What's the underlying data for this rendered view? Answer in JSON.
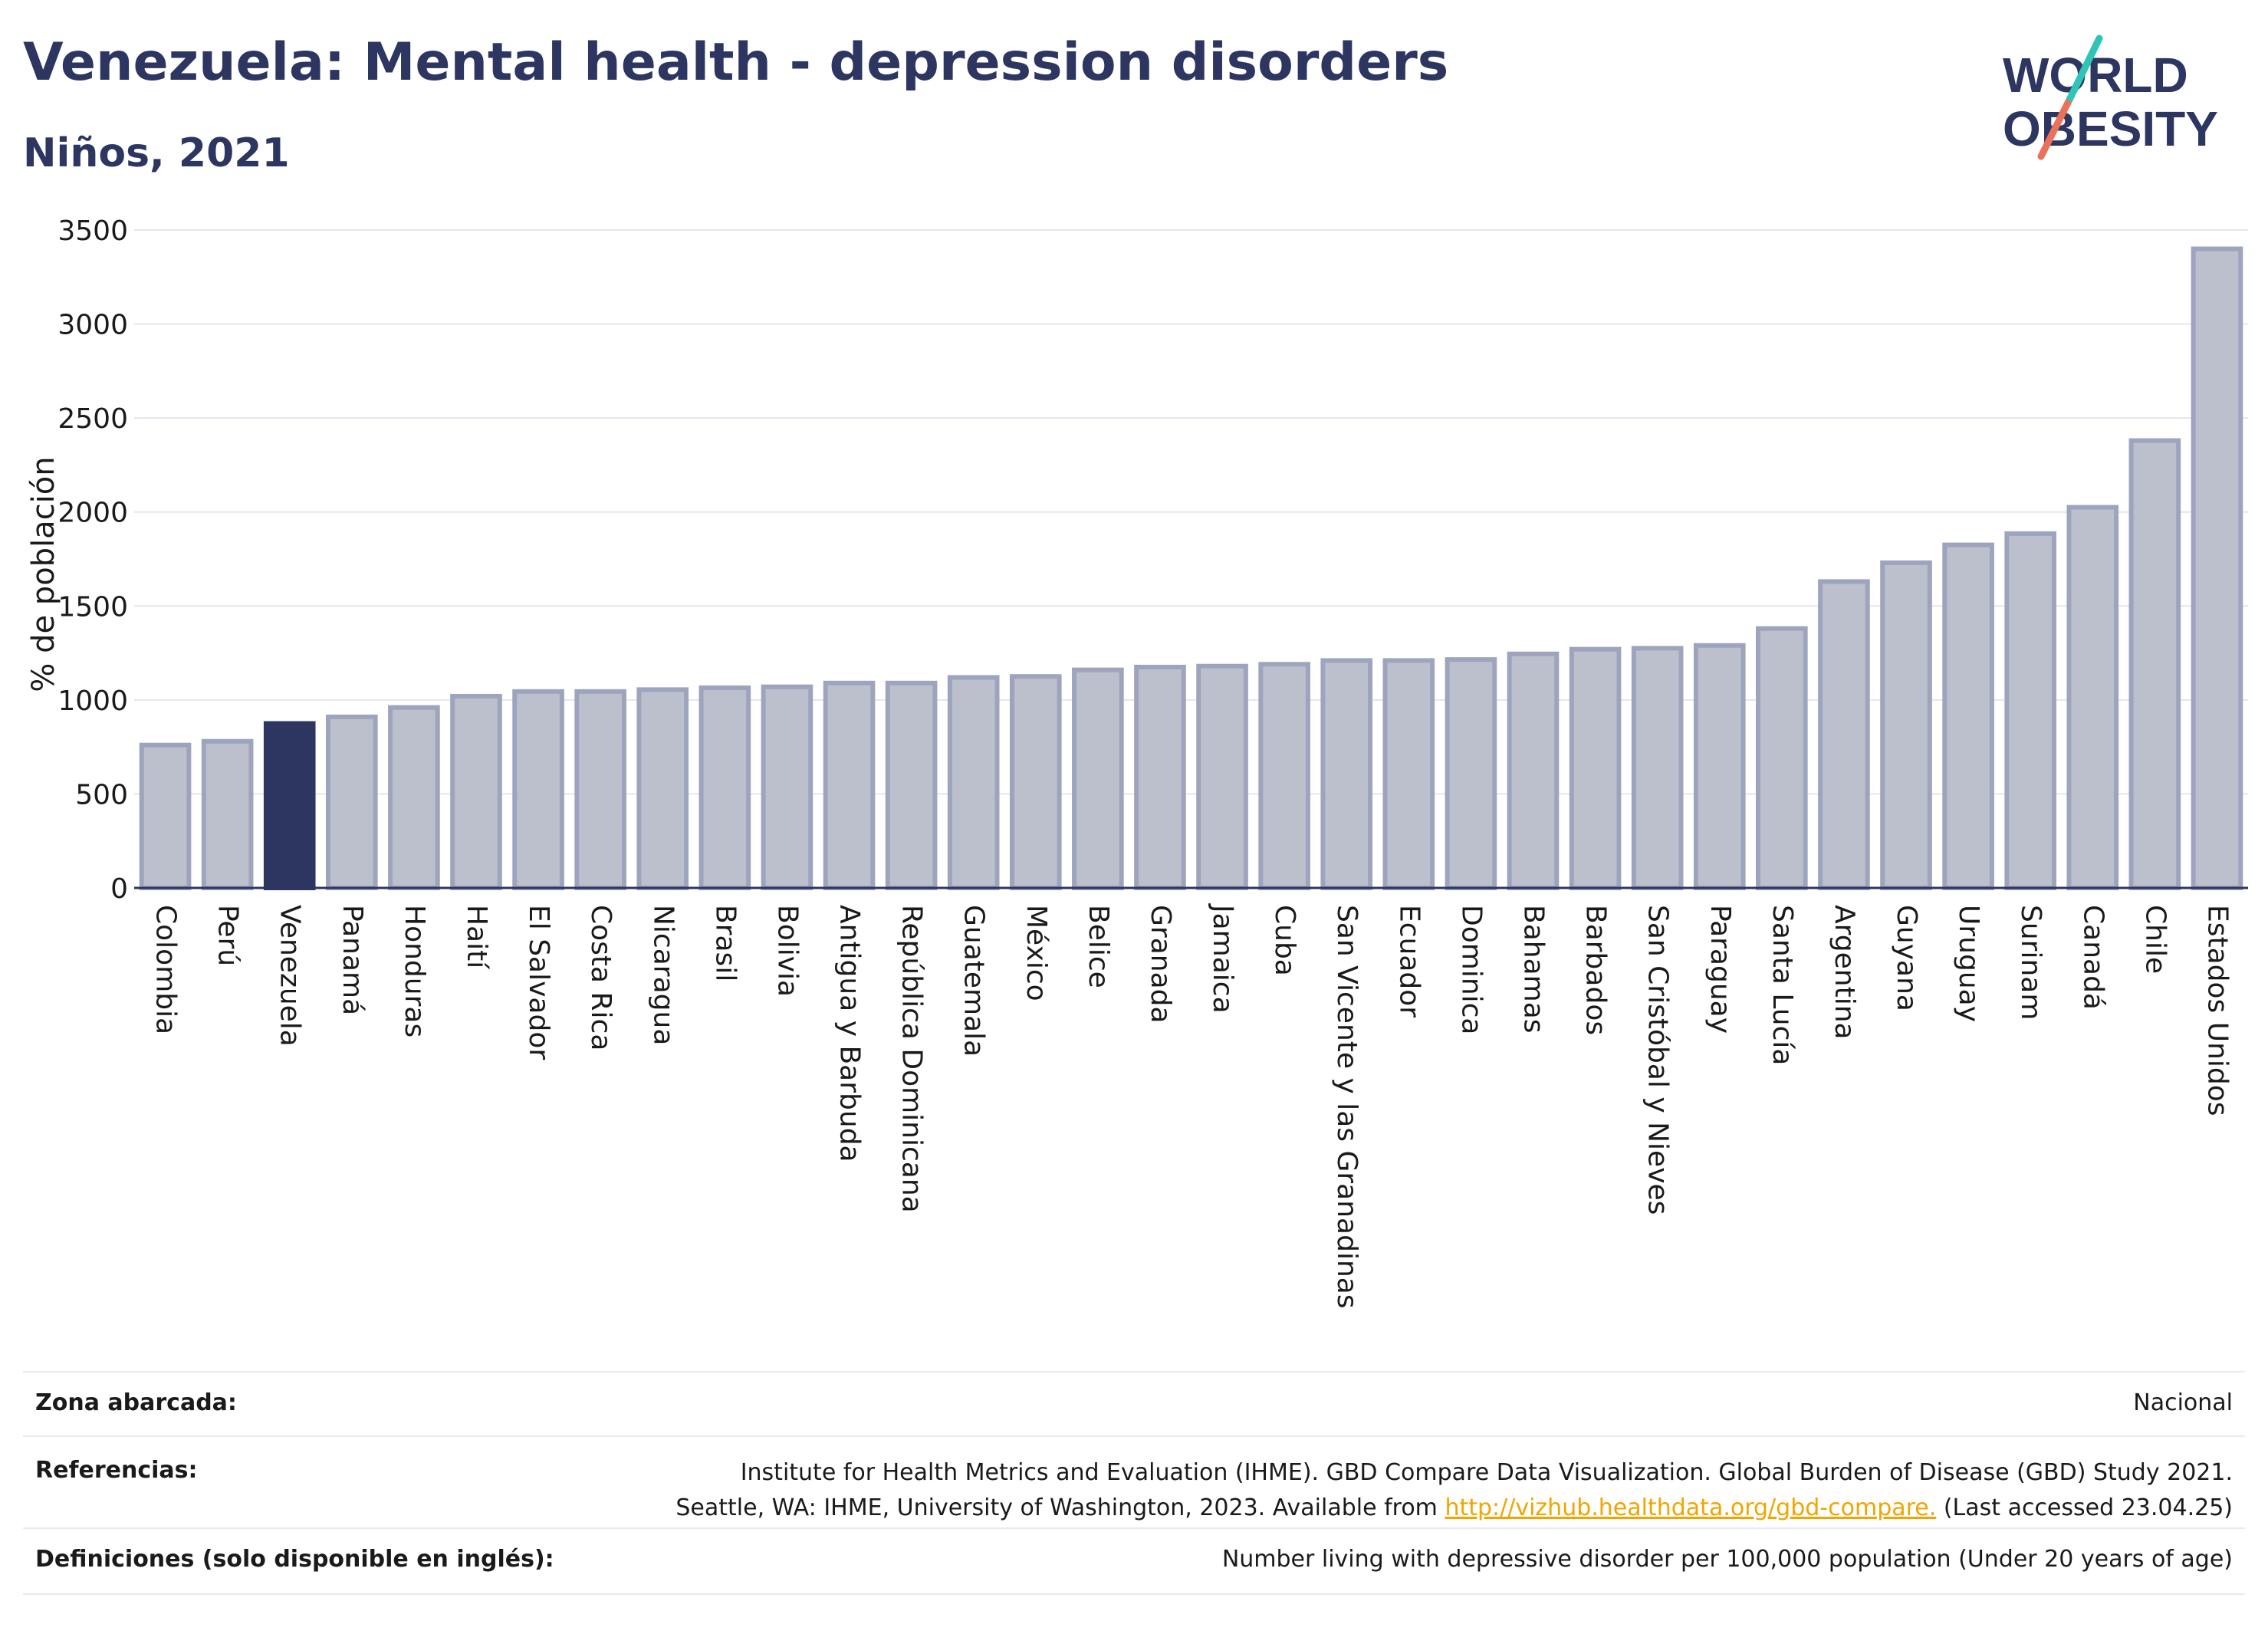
{
  "header": {
    "title": "Venezuela: Mental health - depression disorders",
    "subtitle": "Niños, 2021"
  },
  "logo": {
    "line1": "WORLD",
    "line2": "OBESITY"
  },
  "colors": {
    "highlight": "#2d3561",
    "bar_fill": "#bcc0cd",
    "bar_stroke": "#9ea4bd",
    "grid": "#e4e6ee",
    "text": "#2d3561",
    "link": "#f0a500",
    "logo_teal": "#2ec4b6",
    "logo_coral": "#e8735a"
  },
  "chart_data": {
    "type": "bar",
    "title": "Venezuela: Mental health - depression disorders",
    "subtitle": "Niños, 2021",
    "xlabel": "",
    "ylabel": "% de población",
    "ylim": [
      0,
      3500
    ],
    "yticks": [
      0,
      500,
      1000,
      1500,
      2000,
      2500,
      3000,
      3500
    ],
    "grid": true,
    "highlight": "Venezuela",
    "categories": [
      "Colombia",
      "Perú",
      "Venezuela",
      "Panamá",
      "Honduras",
      "Haití",
      "El Salvador",
      "Costa Rica",
      "Nicaragua",
      "Brasil",
      "Bolivia",
      "Antigua y Barbuda",
      "República Dominicana",
      "Guatemala",
      "México",
      "Belice",
      "Granada",
      "Jamaica",
      "Cuba",
      "San Vicente y las Granadinas",
      "Ecuador",
      "Dominica",
      "Bahamas",
      "Barbados",
      "San Cristóbal y Nieves",
      "Paraguay",
      "Santa Lucía",
      "Argentina",
      "Guyana",
      "Uruguay",
      "Surinam",
      "Canadá",
      "Chile",
      "Estados Unidos"
    ],
    "values": [
      760,
      780,
      875,
      910,
      960,
      1020,
      1045,
      1045,
      1055,
      1065,
      1070,
      1090,
      1090,
      1120,
      1125,
      1160,
      1175,
      1180,
      1190,
      1210,
      1210,
      1215,
      1245,
      1270,
      1275,
      1290,
      1380,
      1630,
      1730,
      1825,
      1885,
      2025,
      2380,
      3400
    ]
  },
  "info": {
    "coverage_label": "Zona abarcada:",
    "coverage_value": "Nacional",
    "references_label": "Referencias:",
    "references_line1": "Institute for Health Metrics and Evaluation (IHME). GBD Compare Data Visualization. Global Burden of Disease (GBD) Study 2021.",
    "references_line2_pre": "Seattle, WA: IHME, University of Washington, 2023. Available from ",
    "references_link": "http://vizhub.healthdata.org/gbd-compare.",
    "references_line2_post": " (Last accessed 23.04.25)",
    "definitions_label": "Definiciones (solo disponible en inglés):",
    "definitions_value": "Number living with depressive disorder per 100,000 population (Under 20 years of age)"
  }
}
